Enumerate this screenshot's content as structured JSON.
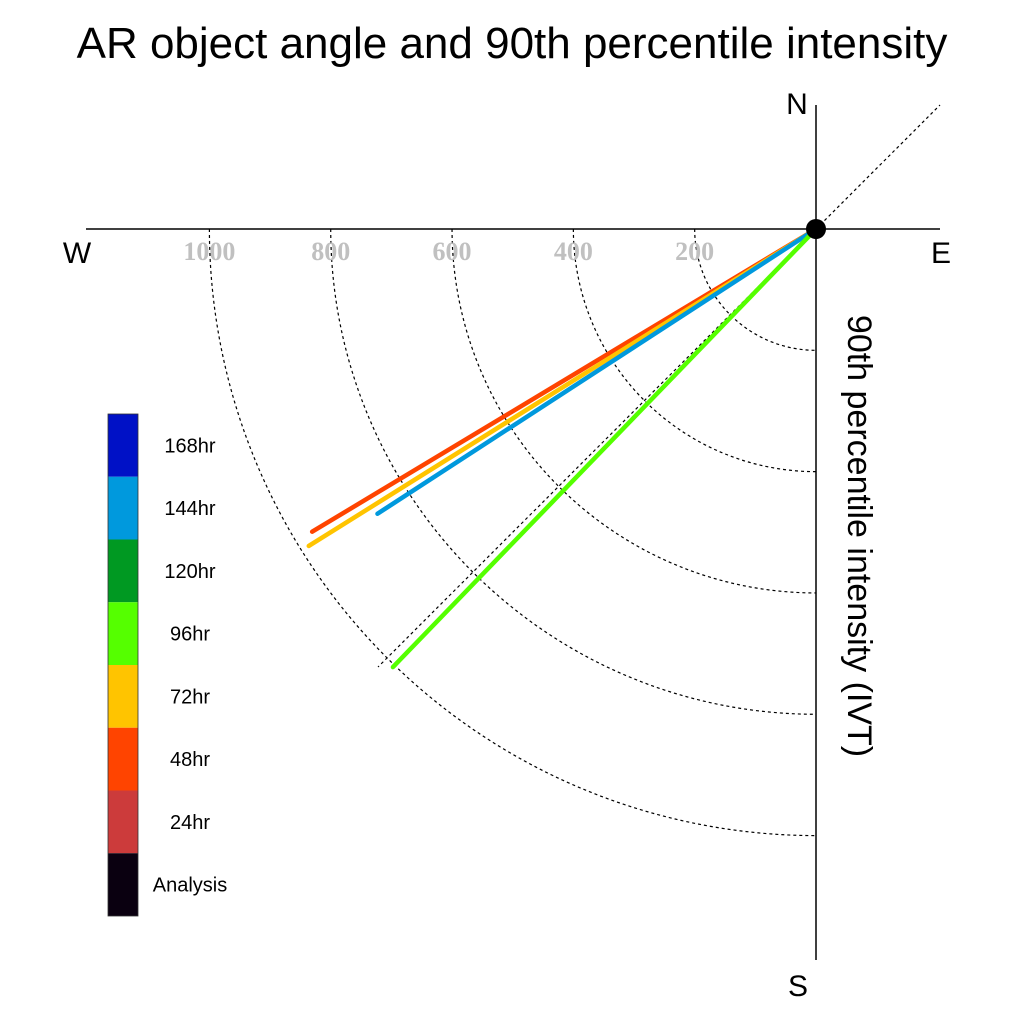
{
  "chart_data": {
    "type": "polar-line",
    "title": "AR object angle and 90th percentile intensity",
    "radial_axis_label": "90th percentile intensity (IVT)",
    "compass": {
      "n": "N",
      "e": "E",
      "s": "S",
      "w": "W"
    },
    "radial_ticks": [
      200,
      400,
      600,
      800,
      1000
    ],
    "radial_tick_labels": [
      "200",
      "400",
      "600",
      "800",
      "1000"
    ],
    "rmax": 1200,
    "grid": true,
    "legend_placement": "left",
    "legend": [
      {
        "label": "168hr",
        "color": "#0011C6"
      },
      {
        "label": "144hr",
        "color": "#0099DD"
      },
      {
        "label": "120hr",
        "color": "#009922"
      },
      {
        "label": "96hr",
        "color": "#55FF00"
      },
      {
        "label": "72hr",
        "color": "#FFC400"
      },
      {
        "label": "48hr",
        "color": "#FF4400"
      },
      {
        "label": "24hr",
        "color": "#CC3B3B"
      },
      {
        "label": "Analysis",
        "color": "#0A0010"
      }
    ],
    "series": [
      {
        "name": "48hr",
        "color": "#FF4400",
        "angle_deg": 239,
        "intensity": 969
      },
      {
        "name": "72hr",
        "color": "#FFC400",
        "angle_deg": 238,
        "intensity": 986
      },
      {
        "name": "144hr",
        "color": "#0099DD",
        "angle_deg": 237,
        "intensity": 862
      },
      {
        "name": "96hr",
        "color": "#55FF00",
        "angle_deg": 224,
        "intensity": 1004
      }
    ]
  }
}
